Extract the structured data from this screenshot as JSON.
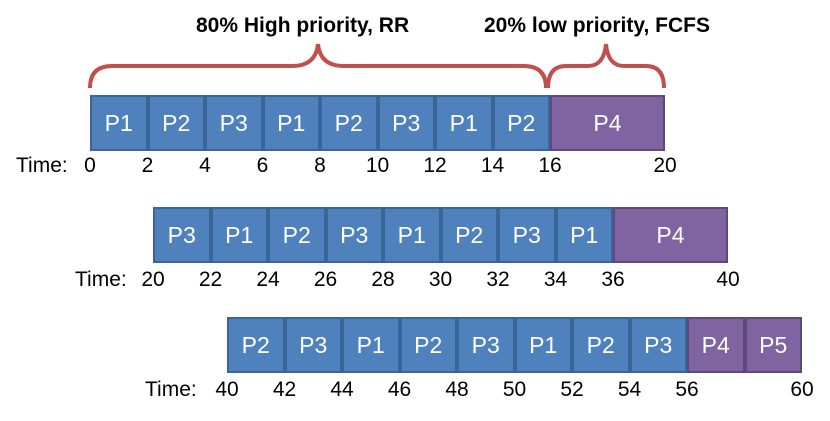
{
  "headings": {
    "high": "80% High priority, RR",
    "low": "20% low priority, FCFS"
  },
  "colors": {
    "high": "#4f81bd",
    "low": "#8064a2",
    "brace": "#c0504d"
  },
  "time_label": "Time:",
  "rows": [
    {
      "segments": [
        {
          "label": "P1",
          "start": 0,
          "end": 2,
          "kind": "high"
        },
        {
          "label": "P2",
          "start": 2,
          "end": 4,
          "kind": "high"
        },
        {
          "label": "P3",
          "start": 4,
          "end": 6,
          "kind": "high"
        },
        {
          "label": "P1",
          "start": 6,
          "end": 8,
          "kind": "high"
        },
        {
          "label": "P2",
          "start": 8,
          "end": 10,
          "kind": "high"
        },
        {
          "label": "P3",
          "start": 10,
          "end": 12,
          "kind": "high"
        },
        {
          "label": "P1",
          "start": 12,
          "end": 14,
          "kind": "high"
        },
        {
          "label": "P2",
          "start": 14,
          "end": 16,
          "kind": "high"
        },
        {
          "label": "P4",
          "start": 16,
          "end": 20,
          "kind": "low"
        }
      ],
      "ticks": [
        "0",
        "2",
        "4",
        "6",
        "8",
        "10",
        "12",
        "14",
        "16",
        "20"
      ]
    },
    {
      "segments": [
        {
          "label": "P3",
          "start": 20,
          "end": 22,
          "kind": "high"
        },
        {
          "label": "P1",
          "start": 22,
          "end": 24,
          "kind": "high"
        },
        {
          "label": "P2",
          "start": 24,
          "end": 26,
          "kind": "high"
        },
        {
          "label": "P3",
          "start": 26,
          "end": 28,
          "kind": "high"
        },
        {
          "label": "P1",
          "start": 28,
          "end": 30,
          "kind": "high"
        },
        {
          "label": "P2",
          "start": 30,
          "end": 32,
          "kind": "high"
        },
        {
          "label": "P3",
          "start": 32,
          "end": 34,
          "kind": "high"
        },
        {
          "label": "P1",
          "start": 34,
          "end": 36,
          "kind": "high"
        },
        {
          "label": "P4",
          "start": 36,
          "end": 40,
          "kind": "low"
        }
      ],
      "ticks": [
        "20",
        "22",
        "24",
        "26",
        "28",
        "30",
        "32",
        "34",
        "36",
        "40"
      ]
    },
    {
      "segments": [
        {
          "label": "P2",
          "start": 40,
          "end": 42,
          "kind": "high"
        },
        {
          "label": "P3",
          "start": 42,
          "end": 44,
          "kind": "high"
        },
        {
          "label": "P1",
          "start": 44,
          "end": 46,
          "kind": "high"
        },
        {
          "label": "P2",
          "start": 46,
          "end": 48,
          "kind": "high"
        },
        {
          "label": "P3",
          "start": 48,
          "end": 50,
          "kind": "high"
        },
        {
          "label": "P1",
          "start": 50,
          "end": 52,
          "kind": "high"
        },
        {
          "label": "P2",
          "start": 52,
          "end": 54,
          "kind": "high"
        },
        {
          "label": "P3",
          "start": 54,
          "end": 56,
          "kind": "high"
        },
        {
          "label": "P4",
          "start": 56,
          "end": 58,
          "kind": "low"
        },
        {
          "label": "P5",
          "start": 58,
          "end": 60,
          "kind": "low"
        }
      ],
      "ticks": [
        "40",
        "42",
        "44",
        "46",
        "48",
        "50",
        "52",
        "54",
        "56",
        "60"
      ]
    }
  ]
}
